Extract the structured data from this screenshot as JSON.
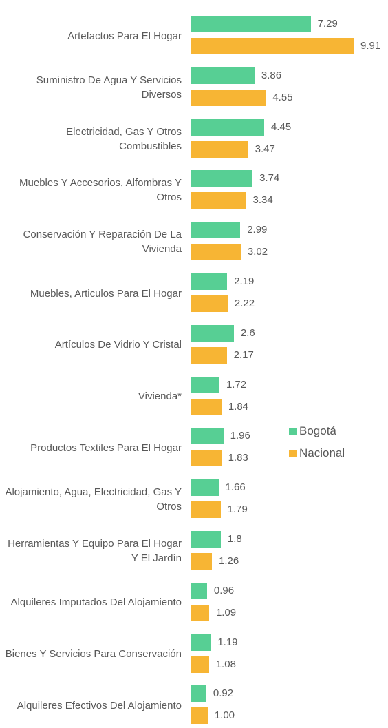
{
  "chart_data": {
    "type": "bar",
    "orientation": "horizontal",
    "categories": [
      "Artefactos Para El Hogar",
      "Suministro De Agua Y Servicios Diversos",
      "Electricidad, Gas Y Otros Combustibles",
      "Muebles Y Accesorios, Alfombras Y Otros",
      "Conservación Y Reparación De La Vivienda",
      "Muebles, Articulos Para El Hogar",
      "Artículos De Vidrio Y Cristal",
      "Vivienda*",
      "Productos Textiles Para El Hogar",
      "Alojamiento, Agua, Electricidad, Gas Y Otros",
      "Herramientas Y Equipo Para El Hogar Y El Jardín",
      "Alquileres Imputados Del Alojamiento",
      "Bienes Y Servicios Para Conservación",
      "Alquileres Efectivos Del Alojamiento"
    ],
    "series": [
      {
        "name": "Bogotá",
        "color": "#57cf94",
        "values": [
          7.29,
          3.86,
          4.45,
          3.74,
          2.99,
          2.19,
          2.6,
          1.72,
          1.96,
          1.66,
          1.8,
          0.96,
          1.19,
          0.92
        ]
      },
      {
        "name": "Nacional",
        "color": "#f7b534",
        "values": [
          9.91,
          4.55,
          3.47,
          3.34,
          3.02,
          2.22,
          2.17,
          1.84,
          1.83,
          1.79,
          1.26,
          1.09,
          1.08,
          1.0
        ],
        "value_labels": [
          "9.91",
          "4.55",
          "3.47",
          "3.34",
          "3.02",
          "2.22",
          "2.17",
          "1.84",
          "1.83",
          "1.79",
          "1.26",
          "1.09",
          "1.08",
          "1.00"
        ]
      }
    ],
    "legend": "right"
  }
}
